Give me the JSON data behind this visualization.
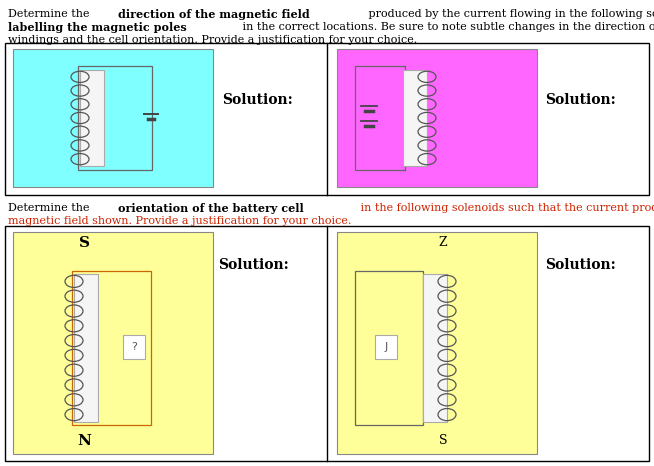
{
  "bg_color": "#ffffff",
  "cyan_bg": "#7fffff",
  "magenta_bg": "#ff66ff",
  "yellow_bg": "#ffff99",
  "text_color_black": "#000000",
  "text_color_red": "#cc2200",
  "text_color_blue": "#0000cc",
  "wire_color": "#666666",
  "coil_color": "#555555",
  "core_color": "#f5f5f5",
  "solution_text": "Solution:",
  "top_line1_a": "Determine the ",
  "top_line1_b": "direction of the magnetic field",
  "top_line1_c": " produced by the current flowing in the following solenoids, by",
  "top_line2_a": "labelling the magnetic poles",
  "top_line2_b": " in the correct locations. Be sure to note subtle changes in the direction of the coil",
  "top_line3": "windings and the cell orientation. Provide a justification for your choice.",
  "mid_line1_a": "Determine the ",
  "mid_line1_b": "orientation of the battery cell",
  "mid_line1_c": " in the following solenoids such that the current produces the",
  "mid_line2": "magnetic field shown. Provide a justification for your choice.",
  "label_S": "S",
  "label_N": "N",
  "label_Z": "Z",
  "label_s": "S",
  "label_q": "?",
  "label_j": "J"
}
